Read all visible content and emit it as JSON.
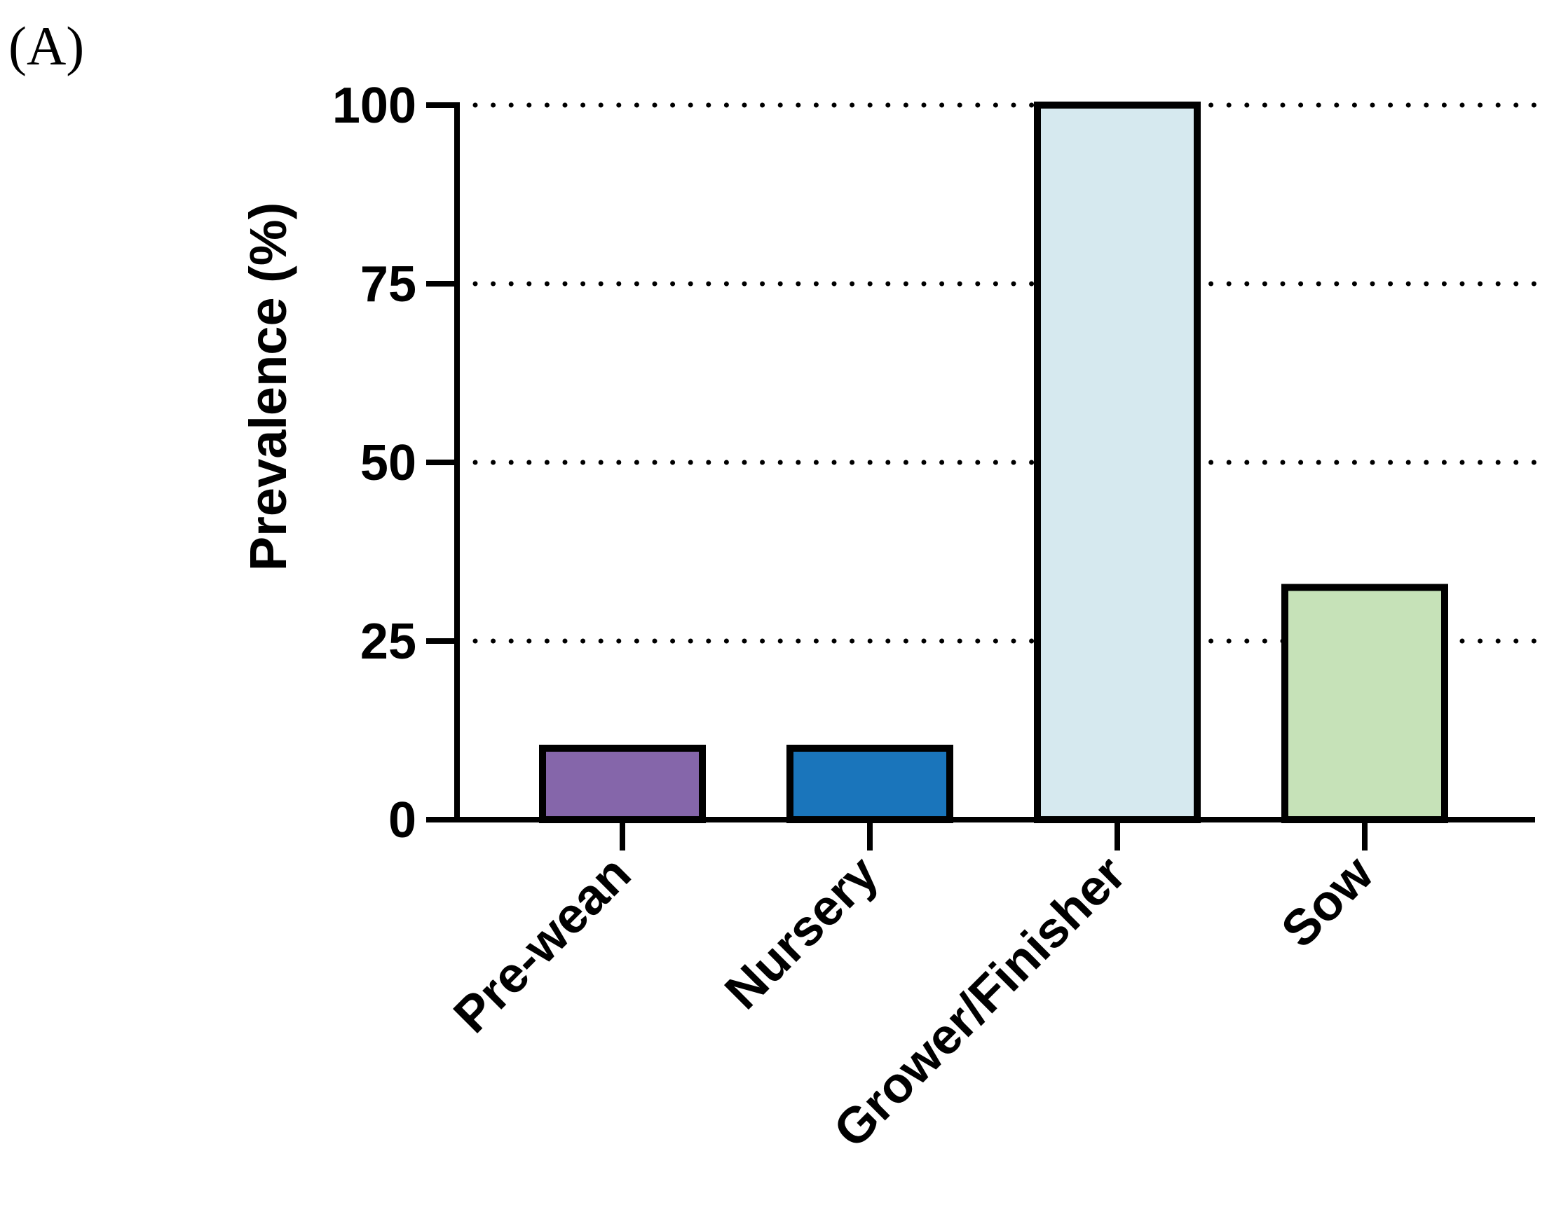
{
  "panel_label": "(A)",
  "chart_data": {
    "type": "bar",
    "title": "",
    "xlabel": "",
    "ylabel": "Prevalence (%)",
    "ylim": [
      0,
      100
    ],
    "yticks": [
      0,
      25,
      50,
      75,
      100
    ],
    "ytick_labels": [
      "0",
      "25",
      "50",
      "75",
      "100"
    ],
    "grid": "horizontal dotted",
    "categories": [
      "Pre-wean",
      "Nursery",
      "Grower/Finisher",
      "Sow"
    ],
    "values": [
      10,
      10,
      100,
      32.5
    ],
    "colors": [
      "#8566aa",
      "#1a75bb",
      "#d6e9ef",
      "#c6e2b8"
    ],
    "edge_color": "#000000"
  }
}
